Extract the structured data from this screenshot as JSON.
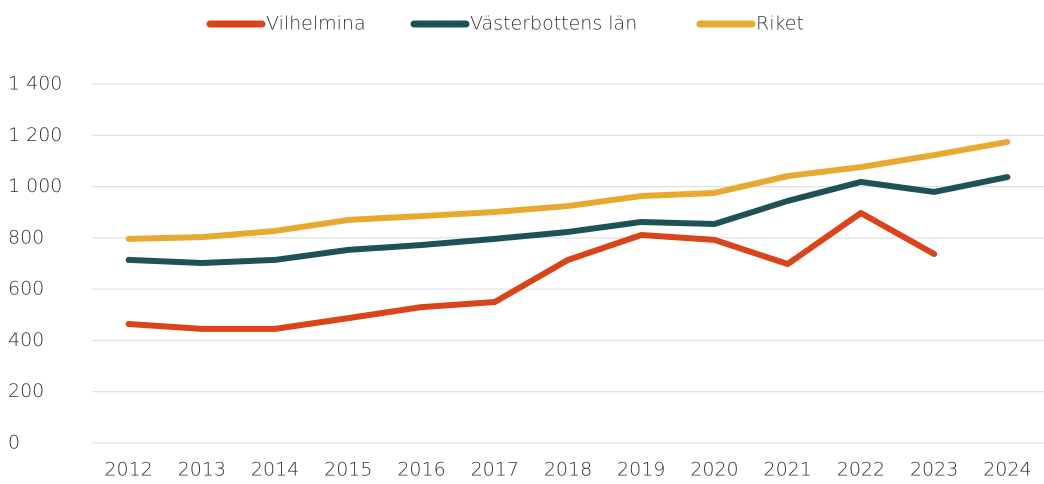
{
  "chart_data": {
    "type": "line",
    "categories": [
      "2012",
      "2013",
      "2014",
      "2015",
      "2016",
      "2017",
      "2018",
      "2019",
      "2020",
      "2021",
      "2022",
      "2023",
      "2024"
    ],
    "series": [
      {
        "name": "Vilhelmina",
        "color": "#d9441a",
        "values": [
          464,
          445,
          445,
          487,
          530,
          550,
          714,
          811,
          792,
          698,
          897,
          737,
          null
        ]
      },
      {
        "name": "Västerbottens län",
        "color": "#1f5257",
        "values": [
          714,
          702,
          714,
          753,
          772,
          796,
          823,
          862,
          854,
          944,
          1018,
          979,
          1037
        ]
      },
      {
        "name": "Riket",
        "color": "#e8a930",
        "values": [
          796,
          803,
          827,
          870,
          885,
          901,
          924,
          963,
          975,
          1041,
          1076,
          1123,
          1174
        ]
      }
    ],
    "ylim": [
      0,
      1400
    ],
    "yticks": [
      0,
      200,
      400,
      600,
      800,
      {
        "value": 1000,
        "label": "1 000"
      },
      {
        "value": 1200,
        "label": "1 200"
      },
      {
        "value": 1400,
        "label": "1 400"
      }
    ],
    "grid": true,
    "legend": "top"
  }
}
